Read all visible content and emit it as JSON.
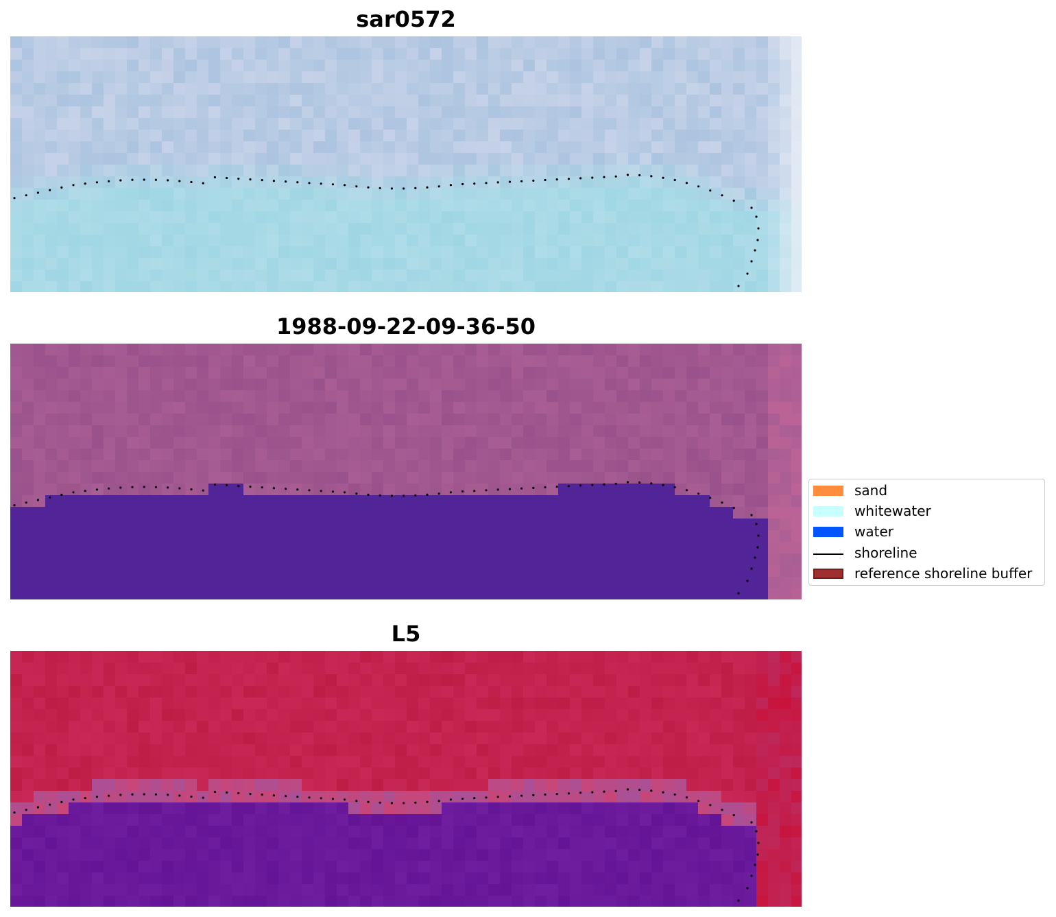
{
  "panels": [
    {
      "title": "sar0572",
      "style": "rgb"
    },
    {
      "title": "1988-09-22-09-36-50",
      "style": "classified"
    },
    {
      "title": "L5",
      "style": "index"
    }
  ],
  "legend": {
    "placement": "center-right",
    "items": [
      {
        "label": "sand",
        "color": "#ff8c3c",
        "kind": "patch"
      },
      {
        "label": "whitewater",
        "color": "#c8ffff",
        "kind": "patch"
      },
      {
        "label": "water",
        "color": "#0055ff",
        "kind": "patch"
      },
      {
        "label": "shoreline",
        "color": "#000000",
        "kind": "line"
      },
      {
        "label": "reference shoreline buffer",
        "color": "#a03030",
        "kind": "patch-edged",
        "edge": "#7a1a1a"
      }
    ]
  },
  "chart_data": {
    "type": "heatmap",
    "panels": [
      "sar0572",
      "1988-09-22-09-36-50",
      "L5"
    ],
    "legend": [
      "sand",
      "whitewater",
      "water",
      "shoreline",
      "reference shoreline buffer"
    ],
    "shoreline_style": "dotted black",
    "axes": "off",
    "colors": {
      "sand": "#ff8c3c",
      "whitewater": "#c8ffff",
      "water": "#0055ff",
      "shoreline": "#000000",
      "reference_shoreline_buffer": "#a03030"
    }
  }
}
